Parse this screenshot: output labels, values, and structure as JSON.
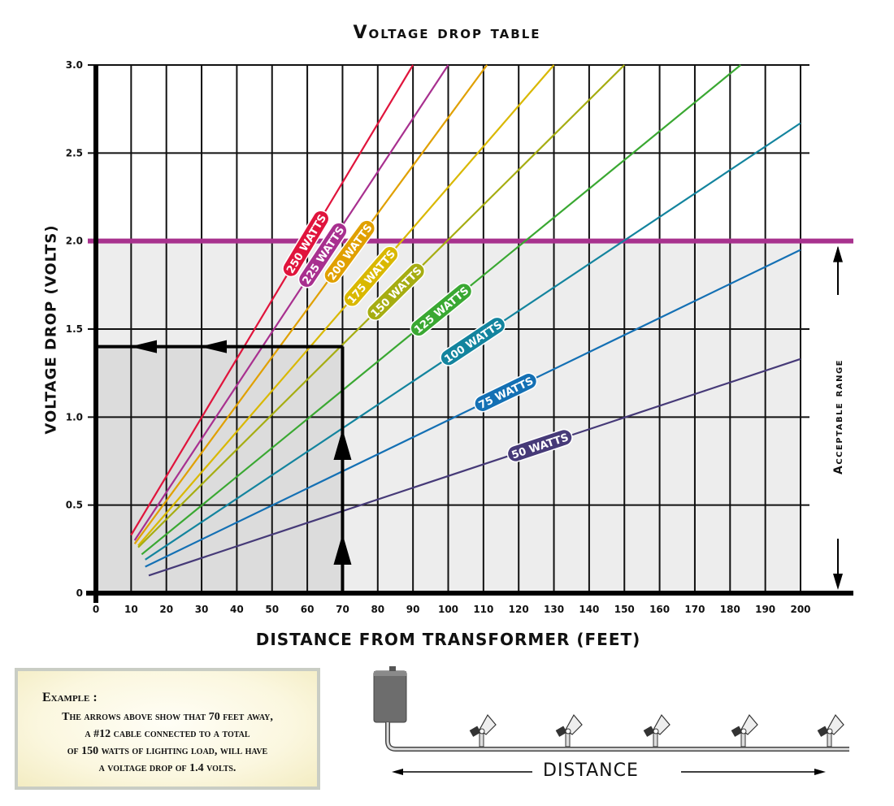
{
  "chart_data": {
    "type": "line",
    "title": "Voltage drop table",
    "xlabel": "DISTANCE FROM TRANSFORMER (FEET)",
    "ylabel": "VOLTAGE DROP (VOLTS)",
    "xlim": [
      0,
      200
    ],
    "ylim": [
      0,
      3.0
    ],
    "x_ticks": [
      0,
      10,
      20,
      30,
      40,
      50,
      60,
      70,
      80,
      90,
      100,
      110,
      120,
      130,
      140,
      150,
      160,
      170,
      180,
      190,
      200
    ],
    "y_ticks": [
      "0",
      "0.5",
      "1.0",
      "1.5",
      "2.0",
      "2.5",
      "3.0"
    ],
    "grid": true,
    "series": [
      {
        "name": "250 WATTS",
        "color": "#e0143c",
        "x": [
          10,
          90
        ],
        "y": [
          0.33,
          3.0
        ],
        "label_at": 83
      },
      {
        "name": "225 WATTS",
        "color": "#a8308f",
        "x": [
          11,
          100
        ],
        "y": [
          0.3,
          3.0
        ],
        "label_at": 83
      },
      {
        "name": "200 WATTS",
        "color": "#e0a000",
        "x": [
          11,
          111
        ],
        "y": [
          0.28,
          3.0
        ],
        "label_at": 80
      },
      {
        "name": "175 WATTS",
        "color": "#d9b800",
        "x": [
          12,
          130
        ],
        "y": [
          0.27,
          3.0
        ],
        "label_at": 81
      },
      {
        "name": "150 WATTS",
        "color": "#a6ad12",
        "x": [
          12,
          150
        ],
        "y": [
          0.26,
          3.0
        ],
        "label_at": 82
      },
      {
        "name": "125 WATTS",
        "color": "#3aa832",
        "x": [
          13,
          183
        ],
        "y": [
          0.22,
          3.0
        ],
        "label_at": 77
      },
      {
        "name": "100 WATTS",
        "color": "#13849e",
        "x": [
          14,
          200
        ],
        "y": [
          0.19,
          2.67
        ],
        "label_at": 78
      },
      {
        "name": "75 WATTS",
        "color": "#1470b4",
        "x": [
          14,
          200
        ],
        "y": [
          0.15,
          1.95
        ],
        "label_at": 78
      },
      {
        "name": "50 WATTS",
        "color": "#463a78",
        "x": [
          15,
          200
        ],
        "y": [
          0.1,
          1.33
        ],
        "label_at": 77
      }
    ],
    "annotations": [
      {
        "type": "hline",
        "y": 2.0,
        "color": "#a8328e",
        "label": "Acceptable range",
        "shaded_below": true
      },
      {
        "type": "example_path",
        "x": 70,
        "y": 1.4,
        "description": "Arrows up from 70 ft to the 150 W line, then left to 1.4 V"
      }
    ],
    "legend": "inline labels on lines"
  },
  "title": "Voltage drop table",
  "axes": {
    "xlabel": "DISTANCE FROM TRANSFORMER (FEET)",
    "ylabel": "VOLTAGE DROP (VOLTS)",
    "range_label": "Acceptable range"
  },
  "example": {
    "heading": "Example :",
    "lines": [
      "The arrows above show that 70 feet away,",
      "a  #12 cable connected to a total",
      "of 150 watts of lighting load, will have",
      "a voltage drop of 1.4 volts."
    ]
  },
  "diagram": {
    "label": "DISTANCE",
    "fixtures": 5
  },
  "colors": {
    "acceptable_line": "#a8328e",
    "shade": "#ededed",
    "example_shade": "#dcdcdc"
  }
}
